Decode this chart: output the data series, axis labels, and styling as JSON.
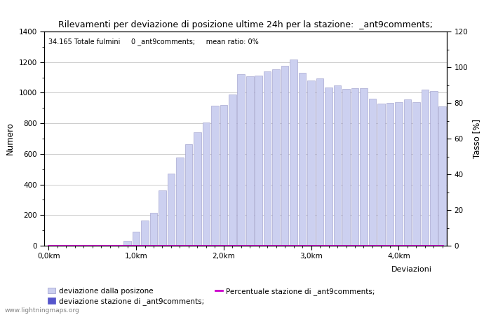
{
  "title": "Rilevamenti per deviazione di posizione ultime 24h per la stazione:  _ant9comments;",
  "subtitle": "34.165 Totale fulmini     0 _ant9comments;     mean ratio: 0%",
  "ylabel_left": "Numero",
  "ylabel_right": "Tasso [%]",
  "bar_values": [
    0,
    0,
    0,
    0,
    0,
    0,
    0,
    0,
    0,
    30,
    90,
    165,
    215,
    360,
    470,
    575,
    665,
    740,
    805,
    915,
    920,
    990,
    1120,
    1105,
    1110,
    1140,
    1155,
    1175,
    1215,
    1130,
    1080,
    1095,
    1035,
    1050,
    1025,
    1030,
    1030,
    960,
    930,
    935,
    940,
    955,
    940,
    1020,
    1010,
    910
  ],
  "bar_color": "#ccd0f0",
  "bar_edge_color": "#9898c8",
  "station_bar_values": [
    0,
    0,
    0,
    0,
    0,
    0,
    0,
    0,
    0,
    0,
    0,
    0,
    0,
    0,
    0,
    0,
    0,
    0,
    0,
    0,
    0,
    0,
    0,
    0,
    0,
    0,
    0,
    0,
    0,
    0,
    0,
    0,
    0,
    0,
    0,
    0,
    0,
    0,
    0,
    0,
    0,
    0,
    0,
    0,
    0,
    0
  ],
  "station_bar_color": "#5555cc",
  "percentage_values": [
    0,
    0,
    0,
    0,
    0,
    0,
    0,
    0,
    0,
    0,
    0,
    0,
    0,
    0,
    0,
    0,
    0,
    0,
    0,
    0,
    0,
    0,
    0,
    0,
    0,
    0,
    0,
    0,
    0,
    0,
    0,
    0,
    0,
    0,
    0,
    0,
    0,
    0,
    0,
    0,
    0,
    0,
    0,
    0,
    0,
    0
  ],
  "percentage_color": "#cc00cc",
  "xtick_positions": [
    0,
    10,
    20,
    30,
    40
  ],
  "xtick_labels": [
    "0,0km",
    "1,0km",
    "2,0km",
    "3,0km",
    "4,0km"
  ],
  "ylim_left": [
    0,
    1400
  ],
  "ylim_right": [
    0,
    120
  ],
  "yticks_left": [
    0,
    200,
    400,
    600,
    800,
    1000,
    1200,
    1400
  ],
  "yticks_right": [
    0,
    20,
    40,
    60,
    80,
    100,
    120
  ],
  "grid_color": "#cccccc",
  "background_color": "#ffffff",
  "bar_width": 0.85,
  "legend_label_bar": "deviazione dalla posizone",
  "legend_label_station": "deviazione stazione di _ant9comments;",
  "legend_label_pct": "Percentuale stazione di _ant9comments;",
  "watermark": "www.lightningmaps.org",
  "legend_xlabel": "Deviazioni"
}
